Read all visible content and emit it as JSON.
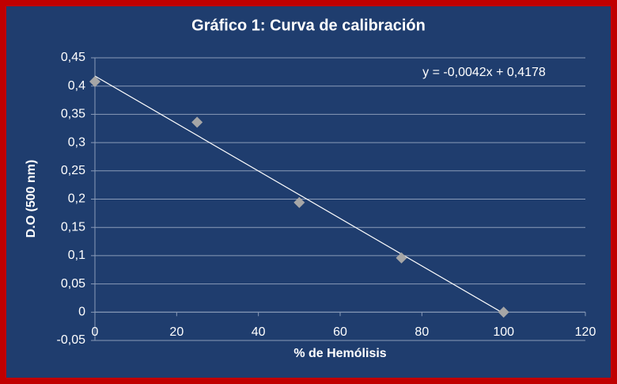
{
  "chart_data": {
    "type": "scatter",
    "title": "Gráfico 1: Curva de calibración",
    "x_label": "% de Hemólisis",
    "y_label": "D.O (500 nm)",
    "x": [
      0,
      25,
      50,
      75,
      100
    ],
    "values": [
      0.408,
      0.336,
      0.194,
      0.096,
      0.0
    ],
    "color": "#a6a6a6",
    "trendline": {
      "label": "y = -0,0042x + 0,4178",
      "slope": -0.0042,
      "intercept": 0.4178,
      "color": "#ffffff"
    },
    "xlim": [
      0,
      120
    ],
    "xticks": [
      0,
      20,
      40,
      60,
      80,
      100,
      120
    ],
    "ylim": [
      -0.05,
      0.45
    ],
    "yticks": [
      {
        "value": -0.05,
        "label": "-0,05"
      },
      0,
      {
        "value": 0.05,
        "label": "0,05"
      },
      {
        "value": 0.1,
        "label": "0,1"
      },
      {
        "value": 0.15,
        "label": "0,15"
      },
      {
        "value": 0.2,
        "label": "0,2"
      },
      {
        "value": 0.25,
        "label": "0,25"
      },
      {
        "value": 0.3,
        "label": "0,3"
      },
      {
        "value": 0.35,
        "label": "0,35"
      },
      {
        "value": 0.4,
        "label": "0,4"
      },
      {
        "value": 0.45,
        "label": "0,45"
      }
    ],
    "grid": true
  }
}
